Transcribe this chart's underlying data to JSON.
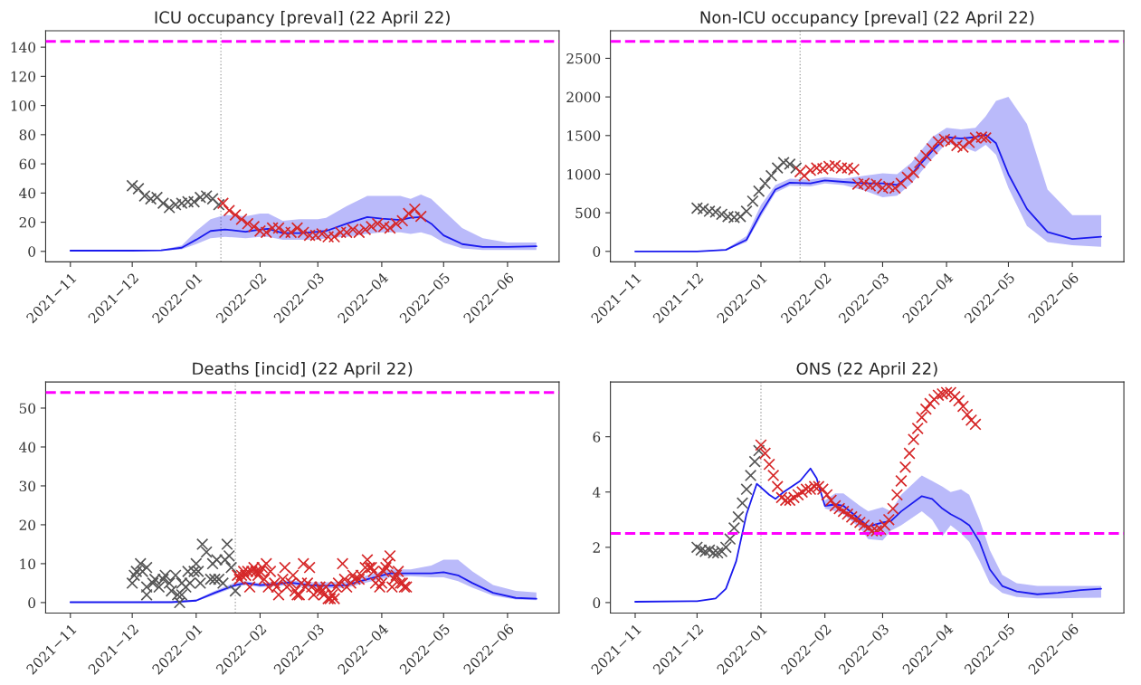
{
  "chart_data": [
    {
      "type": "line",
      "title": "ICU occupancy [preval] (22 April 22)",
      "xlim": [
        "2021-10-20",
        "2022-06-26"
      ],
      "ylim": [
        -7.2,
        151.2
      ],
      "yticks": [
        0,
        20,
        40,
        60,
        80,
        100,
        120,
        140
      ],
      "xticks": [
        {
          "value": "2021-11-01",
          "label": "2021−11"
        },
        {
          "value": "2021-12-01",
          "label": "2021−12"
        },
        {
          "value": "2022-01-01",
          "label": "2022−01"
        },
        {
          "value": "2022-02-01",
          "label": "2022−02"
        },
        {
          "value": "2022-03-01",
          "label": "2022−03"
        },
        {
          "value": "2022-04-01",
          "label": "2022−04"
        },
        {
          "value": "2022-05-01",
          "label": "2022−05"
        },
        {
          "value": "2022-06-01",
          "label": "2022−06"
        }
      ],
      "ref_lines": [
        {
          "axis": "y",
          "value": 144,
          "color": "#ff00ff",
          "line_style": "dashed"
        },
        {
          "axis": "x",
          "value": "2022-01-13",
          "color": "#aaaaaa",
          "line_style": "dotted"
        }
      ],
      "series": [
        {
          "type": "scatter",
          "marker": "cross",
          "color": "#555555",
          "x": [
            "2021-12-01",
            "2021-12-04",
            "2021-12-07",
            "2021-12-10",
            "2021-12-13",
            "2021-12-16",
            "2021-12-19",
            "2021-12-22",
            "2021-12-25",
            "2021-12-28",
            "2021-12-31",
            "2022-01-03",
            "2022-01-06",
            "2022-01-09",
            "2022-01-12"
          ],
          "values": [
            45,
            43,
            38,
            36,
            37,
            33,
            30,
            32,
            33,
            34,
            34,
            37,
            38,
            36,
            32
          ]
        },
        {
          "type": "scatter",
          "marker": "cross",
          "color": "#d62728",
          "x": [
            "2022-01-14",
            "2022-01-17",
            "2022-01-20",
            "2022-01-23",
            "2022-01-26",
            "2022-01-29",
            "2022-02-01",
            "2022-02-04",
            "2022-02-07",
            "2022-02-10",
            "2022-02-13",
            "2022-02-16",
            "2022-02-19",
            "2022-02-22",
            "2022-02-25",
            "2022-02-28",
            "2022-03-03",
            "2022-03-06",
            "2022-03-09",
            "2022-03-12",
            "2022-03-15",
            "2022-03-18",
            "2022-03-21",
            "2022-03-24",
            "2022-03-27",
            "2022-03-30",
            "2022-04-02",
            "2022-04-05",
            "2022-04-08",
            "2022-04-11",
            "2022-04-14",
            "2022-04-17",
            "2022-04-20"
          ],
          "values": [
            33,
            28,
            25,
            22,
            19,
            17,
            14,
            13,
            16,
            16,
            13,
            13,
            16,
            13,
            11,
            11,
            12,
            10,
            10,
            13,
            13,
            15,
            13,
            15,
            17,
            19,
            17,
            16,
            19,
            21,
            26,
            29,
            24
          ]
        },
        {
          "type": "line",
          "marker": "none",
          "color": "#1a1aee",
          "x": [
            "2021-11-01",
            "2021-11-15",
            "2021-12-01",
            "2021-12-15",
            "2021-12-25",
            "2022-01-01",
            "2022-01-08",
            "2022-01-15",
            "2022-01-25",
            "2022-02-01",
            "2022-02-05",
            "2022-02-12",
            "2022-02-20",
            "2022-03-01",
            "2022-03-05",
            "2022-03-15",
            "2022-03-25",
            "2022-04-01",
            "2022-04-10",
            "2022-04-15",
            "2022-04-20",
            "2022-04-25",
            "2022-05-01",
            "2022-05-10",
            "2022-05-20",
            "2022-06-01",
            "2022-06-15"
          ],
          "values": [
            0.5,
            0.5,
            0.5,
            0.7,
            2.5,
            8,
            14,
            15,
            13.5,
            15,
            15.5,
            12.5,
            12.5,
            13.5,
            14,
            19,
            23.5,
            22.5,
            21.5,
            23,
            23.5,
            19,
            11,
            5,
            3,
            3,
            3.5
          ],
          "lower": [
            0,
            0,
            0,
            0.3,
            1.5,
            5,
            9,
            10,
            9,
            10,
            10,
            8,
            8,
            8,
            9,
            10,
            12,
            13,
            13,
            12,
            13,
            11,
            6,
            2,
            1,
            1,
            1
          ],
          "upper": [
            0.5,
            0.5,
            0.5,
            1,
            4,
            14,
            22,
            25,
            24,
            26,
            26,
            21,
            22,
            22,
            23,
            31,
            38,
            38,
            38,
            36,
            39,
            36,
            28,
            16,
            9,
            6,
            6
          ]
        }
      ]
    },
    {
      "type": "line",
      "title": "Non-ICU occupancy [preval] (22 April 22)",
      "xlim": [
        "2021-10-20",
        "2022-06-26"
      ],
      "ylim": [
        -136,
        2856
      ],
      "yticks": [
        0,
        500,
        1000,
        1500,
        2000,
        2500
      ],
      "xticks": [
        {
          "value": "2021-11-01",
          "label": "2021−11"
        },
        {
          "value": "2021-12-01",
          "label": "2021−12"
        },
        {
          "value": "2022-01-01",
          "label": "2022−01"
        },
        {
          "value": "2022-02-01",
          "label": "2022−02"
        },
        {
          "value": "2022-03-01",
          "label": "2022−03"
        },
        {
          "value": "2022-04-01",
          "label": "2022−04"
        },
        {
          "value": "2022-05-01",
          "label": "2022−05"
        },
        {
          "value": "2022-06-01",
          "label": "2022−06"
        }
      ],
      "ref_lines": [
        {
          "axis": "y",
          "value": 2720,
          "color": "#ff00ff",
          "line_style": "dashed"
        },
        {
          "axis": "x",
          "value": "2022-01-20",
          "color": "#aaaaaa",
          "line_style": "dotted"
        }
      ],
      "series": [
        {
          "type": "scatter",
          "marker": "cross",
          "color": "#555555",
          "x": [
            "2021-12-01",
            "2021-12-04",
            "2021-12-07",
            "2021-12-10",
            "2021-12-13",
            "2021-12-16",
            "2021-12-19",
            "2021-12-22",
            "2021-12-25",
            "2021-12-28",
            "2021-12-31",
            "2022-01-03",
            "2022-01-06",
            "2022-01-09",
            "2022-01-12",
            "2022-01-15",
            "2022-01-18"
          ],
          "values": [
            560,
            550,
            520,
            510,
            480,
            450,
            440,
            450,
            520,
            650,
            780,
            880,
            980,
            1080,
            1150,
            1130,
            1080
          ]
        },
        {
          "type": "scatter",
          "marker": "cross",
          "color": "#d62728",
          "x": [
            "2022-01-20",
            "2022-01-22",
            "2022-01-25",
            "2022-01-28",
            "2022-01-31",
            "2022-02-03",
            "2022-02-06",
            "2022-02-09",
            "2022-02-12",
            "2022-02-15",
            "2022-02-17",
            "2022-02-20",
            "2022-02-23",
            "2022-02-26",
            "2022-03-01",
            "2022-03-04",
            "2022-03-07",
            "2022-03-10",
            "2022-03-13",
            "2022-03-16",
            "2022-03-19",
            "2022-03-22",
            "2022-03-25",
            "2022-03-28",
            "2022-03-31",
            "2022-04-03",
            "2022-04-06",
            "2022-04-09",
            "2022-04-12",
            "2022-04-15",
            "2022-04-18",
            "2022-04-20"
          ],
          "values": [
            1030,
            980,
            1050,
            1080,
            1070,
            1100,
            1110,
            1080,
            1080,
            1060,
            870,
            880,
            850,
            870,
            820,
            840,
            820,
            880,
            960,
            1020,
            1150,
            1240,
            1330,
            1420,
            1450,
            1430,
            1370,
            1350,
            1410,
            1470,
            1480,
            1470
          ]
        },
        {
          "type": "line",
          "marker": "none",
          "color": "#1a1aee",
          "x": [
            "2021-11-01",
            "2021-12-01",
            "2021-12-15",
            "2021-12-25",
            "2022-01-01",
            "2022-01-08",
            "2022-01-15",
            "2022-01-25",
            "2022-02-01",
            "2022-02-10",
            "2022-02-20",
            "2022-03-01",
            "2022-03-08",
            "2022-03-15",
            "2022-03-25",
            "2022-04-01",
            "2022-04-08",
            "2022-04-15",
            "2022-04-20",
            "2022-04-25",
            "2022-05-01",
            "2022-05-10",
            "2022-05-20",
            "2022-06-01",
            "2022-06-15"
          ],
          "values": [
            0,
            0,
            20,
            150,
            500,
            800,
            890,
            880,
            920,
            900,
            880,
            880,
            860,
            1000,
            1300,
            1480,
            1460,
            1480,
            1510,
            1400,
            1000,
            550,
            250,
            160,
            190
          ],
          "lower": [
            0,
            0,
            15,
            120,
            450,
            760,
            850,
            840,
            880,
            860,
            790,
            700,
            720,
            880,
            1200,
            1400,
            1360,
            1290,
            1380,
            1250,
            820,
            330,
            120,
            80,
            60
          ],
          "upper": [
            0,
            0,
            30,
            200,
            600,
            860,
            940,
            930,
            960,
            940,
            980,
            1010,
            1000,
            1150,
            1480,
            1600,
            1580,
            1600,
            1750,
            1950,
            2000,
            1650,
            800,
            470,
            470
          ]
        }
      ]
    },
    {
      "type": "line",
      "title": "Deaths [incid] (22 April 22)",
      "xlim": [
        "2021-10-20",
        "2022-06-26"
      ],
      "ylim": [
        -2.7,
        56.7
      ],
      "yticks": [
        0,
        10,
        20,
        30,
        40,
        50
      ],
      "xticks": [
        {
          "value": "2021-11-01",
          "label": "2021−11"
        },
        {
          "value": "2021-12-01",
          "label": "2021−12"
        },
        {
          "value": "2022-01-01",
          "label": "2022−01"
        },
        {
          "value": "2022-02-01",
          "label": "2022−02"
        },
        {
          "value": "2022-03-01",
          "label": "2022−03"
        },
        {
          "value": "2022-04-01",
          "label": "2022−04"
        },
        {
          "value": "2022-05-01",
          "label": "2022−05"
        },
        {
          "value": "2022-06-01",
          "label": "2022−06"
        }
      ],
      "ref_lines": [
        {
          "axis": "y",
          "value": 54,
          "color": "#ff00ff",
          "line_style": "dashed"
        },
        {
          "axis": "x",
          "value": "2022-01-20",
          "color": "#aaaaaa",
          "line_style": "dotted"
        }
      ],
      "series": [
        {
          "type": "scatter",
          "marker": "cross",
          "color": "#555555",
          "x": [
            "2021-12-01",
            "2021-12-02",
            "2021-12-03",
            "2021-12-05",
            "2021-12-06",
            "2021-12-08",
            "2021-12-08",
            "2021-12-08",
            "2021-12-11",
            "2021-12-12",
            "2021-12-14",
            "2021-12-16",
            "2021-12-17",
            "2021-12-19",
            "2021-12-20",
            "2021-12-22",
            "2021-12-23",
            "2021-12-24",
            "2021-12-25",
            "2021-12-25",
            "2021-12-27",
            "2021-12-28",
            "2021-12-29",
            "2021-12-31",
            "2022-01-01",
            "2022-01-02",
            "2022-01-03",
            "2022-01-04",
            "2022-01-06",
            "2022-01-08",
            "2022-01-09",
            "2022-01-10",
            "2022-01-11",
            "2022-01-12",
            "2022-01-14",
            "2022-01-15",
            "2022-01-16",
            "2022-01-17",
            "2022-01-18",
            "2022-01-20"
          ],
          "values": [
            5,
            7,
            8,
            10,
            8,
            9,
            4,
            2,
            5,
            6,
            4,
            6,
            7,
            5,
            3,
            7,
            2,
            0,
            2,
            5,
            4,
            8,
            5,
            8,
            10,
            8,
            5,
            15,
            13,
            6,
            10,
            6,
            11,
            6,
            5,
            11,
            15,
            12,
            9,
            3
          ]
        },
        {
          "type": "scatter",
          "marker": "cross",
          "color": "#d62728",
          "x": [
            "2022-01-21",
            "2022-01-22",
            "2022-01-23",
            "2022-01-24",
            "2022-01-25",
            "2022-01-26",
            "2022-01-27",
            "2022-01-28",
            "2022-01-29",
            "2022-01-30",
            "2022-01-31",
            "2022-02-01",
            "2022-02-02",
            "2022-02-03",
            "2022-02-04",
            "2022-02-05",
            "2022-02-06",
            "2022-02-08",
            "2022-02-09",
            "2022-02-10",
            "2022-02-12",
            "2022-02-13",
            "2022-02-14",
            "2022-02-16",
            "2022-02-17",
            "2022-02-18",
            "2022-02-19",
            "2022-02-20",
            "2022-02-21",
            "2022-02-22",
            "2022-02-23",
            "2022-02-24",
            "2022-02-25",
            "2022-02-26",
            "2022-02-27",
            "2022-03-01",
            "2022-03-02",
            "2022-03-03",
            "2022-03-04",
            "2022-03-05",
            "2022-03-06",
            "2022-03-07",
            "2022-03-08",
            "2022-03-09",
            "2022-03-10",
            "2022-03-11",
            "2022-03-13",
            "2022-03-14",
            "2022-03-15",
            "2022-03-17",
            "2022-03-18",
            "2022-03-19",
            "2022-03-21",
            "2022-03-22",
            "2022-03-24",
            "2022-03-25",
            "2022-03-26",
            "2022-03-27",
            "2022-03-28",
            "2022-03-29",
            "2022-03-30",
            "2022-03-31",
            "2022-04-01",
            "2022-04-02",
            "2022-04-03",
            "2022-04-04",
            "2022-04-05",
            "2022-04-06",
            "2022-04-07",
            "2022-04-08",
            "2022-04-09",
            "2022-04-10",
            "2022-04-11",
            "2022-04-12",
            "2022-04-13"
          ],
          "values": [
            7,
            6,
            7,
            8,
            7,
            8,
            4,
            8,
            9,
            8,
            7,
            8,
            9,
            6,
            10,
            4,
            8,
            5,
            4,
            2,
            6,
            9,
            4,
            5,
            7,
            3,
            2,
            2,
            5,
            10,
            4,
            5,
            9,
            4,
            2,
            3,
            4,
            3,
            2,
            4,
            1,
            1,
            2,
            1,
            4,
            5,
            10,
            6,
            4,
            5,
            7,
            6,
            6,
            7,
            9,
            11,
            9,
            9,
            8,
            5,
            7,
            4,
            5,
            8,
            9,
            10,
            12,
            4,
            6,
            7,
            8,
            5,
            5,
            4,
            4
          ]
        },
        {
          "type": "line",
          "marker": "none",
          "color": "#1a1aee",
          "x": [
            "2021-11-01",
            "2021-12-01",
            "2021-12-20",
            "2022-01-01",
            "2022-01-10",
            "2022-01-20",
            "2022-01-25",
            "2022-02-01",
            "2022-02-10",
            "2022-02-15",
            "2022-02-25",
            "2022-03-05",
            "2022-03-15",
            "2022-03-25",
            "2022-04-05",
            "2022-04-15",
            "2022-04-25",
            "2022-05-01",
            "2022-05-08",
            "2022-05-15",
            "2022-05-25",
            "2022-06-05",
            "2022-06-15"
          ],
          "values": [
            0.1,
            0.1,
            0.1,
            0.5,
            2.5,
            4.5,
            5,
            4.5,
            4.8,
            5.2,
            4.5,
            4.3,
            4.5,
            6,
            7.5,
            7.5,
            7.5,
            7.8,
            7,
            5,
            2.5,
            1.2,
            1
          ],
          "lower": [
            0,
            0,
            0,
            0.3,
            2,
            4,
            4.5,
            4,
            4.2,
            4.5,
            3.8,
            3.6,
            3.8,
            5.2,
            6.5,
            6.8,
            6.5,
            6.5,
            5.5,
            3.8,
            1.8,
            0.8,
            0.6
          ],
          "upper": [
            0.2,
            0.2,
            0.3,
            0.8,
            3,
            5.2,
            5.5,
            5,
            5.4,
            5.8,
            5.2,
            5.2,
            5.4,
            7,
            8.5,
            8.5,
            9.5,
            11,
            11,
            8,
            4.5,
            3,
            2.6
          ]
        }
      ]
    },
    {
      "type": "line",
      "title": "ONS (22 April 22)",
      "xlim": [
        "2021-10-20",
        "2022-06-26"
      ],
      "ylim": [
        -0.38,
        7.98
      ],
      "yticks": [
        0,
        2,
        4,
        6
      ],
      "xticks": [
        {
          "value": "2021-11-01",
          "label": "2021−11"
        },
        {
          "value": "2021-12-01",
          "label": "2021−12"
        },
        {
          "value": "2022-01-01",
          "label": "2022−01"
        },
        {
          "value": "2022-02-01",
          "label": "2022−02"
        },
        {
          "value": "2022-03-01",
          "label": "2022−03"
        },
        {
          "value": "2022-04-01",
          "label": "2022−04"
        },
        {
          "value": "2022-05-01",
          "label": "2022−05"
        },
        {
          "value": "2022-06-01",
          "label": "2022−06"
        }
      ],
      "ref_lines": [
        {
          "axis": "y",
          "value": 2.5,
          "color": "#ff00ff",
          "line_style": "dashed"
        },
        {
          "axis": "x",
          "value": "2022-01-01",
          "color": "#aaaaaa",
          "line_style": "dotted"
        }
      ],
      "series": [
        {
          "type": "scatter",
          "marker": "cross",
          "color": "#555555",
          "x": [
            "2021-12-01",
            "2021-12-03",
            "2021-12-05",
            "2021-12-07",
            "2021-12-09",
            "2021-12-11",
            "2021-12-13",
            "2021-12-15",
            "2021-12-17",
            "2021-12-19",
            "2021-12-21",
            "2021-12-23",
            "2021-12-25",
            "2021-12-27",
            "2021-12-29",
            "2021-12-31"
          ],
          "values": [
            2.0,
            1.9,
            1.85,
            1.9,
            1.8,
            1.8,
            1.85,
            2.0,
            2.3,
            2.7,
            3.1,
            3.6,
            4.1,
            4.6,
            5.1,
            5.5
          ]
        },
        {
          "type": "scatter",
          "marker": "cross",
          "color": "#d62728",
          "x": [
            "2022-01-01",
            "2022-01-03",
            "2022-01-05",
            "2022-01-07",
            "2022-01-09",
            "2022-01-11",
            "2022-01-13",
            "2022-01-15",
            "2022-01-17",
            "2022-01-19",
            "2022-01-21",
            "2022-01-23",
            "2022-01-25",
            "2022-01-27",
            "2022-01-29",
            "2022-01-31",
            "2022-02-02",
            "2022-02-04",
            "2022-02-06",
            "2022-02-08",
            "2022-02-10",
            "2022-02-12",
            "2022-02-14",
            "2022-02-16",
            "2022-02-18",
            "2022-02-20",
            "2022-02-22",
            "2022-02-24",
            "2022-02-26",
            "2022-02-28",
            "2022-03-02",
            "2022-03-04",
            "2022-03-06",
            "2022-03-08",
            "2022-03-10",
            "2022-03-12",
            "2022-03-14",
            "2022-03-16",
            "2022-03-18",
            "2022-03-20",
            "2022-03-22",
            "2022-03-24",
            "2022-03-26",
            "2022-03-28",
            "2022-03-30",
            "2022-04-01",
            "2022-04-03",
            "2022-04-05",
            "2022-04-07",
            "2022-04-09",
            "2022-04-11",
            "2022-04-13",
            "2022-04-15"
          ],
          "values": [
            5.7,
            5.4,
            5.0,
            4.6,
            4.2,
            3.8,
            3.7,
            3.7,
            3.8,
            3.9,
            4.0,
            4.1,
            4.1,
            4.2,
            4.2,
            4.1,
            3.9,
            3.7,
            3.5,
            3.4,
            3.3,
            3.2,
            3.1,
            3.0,
            2.9,
            2.8,
            2.7,
            2.6,
            2.6,
            2.65,
            2.8,
            3.0,
            3.4,
            3.9,
            4.4,
            4.9,
            5.4,
            5.9,
            6.3,
            6.7,
            7.0,
            7.2,
            7.35,
            7.5,
            7.55,
            7.6,
            7.6,
            7.45,
            7.3,
            7.1,
            6.8,
            6.6,
            6.45
          ]
        },
        {
          "type": "line",
          "marker": "none",
          "color": "#1a1aee",
          "x": [
            "2021-11-01",
            "2021-12-01",
            "2021-12-10",
            "2021-12-15",
            "2021-12-20",
            "2021-12-25",
            "2021-12-30",
            "2022-01-05",
            "2022-01-08",
            "2022-01-12",
            "2022-01-20",
            "2022-01-25",
            "2022-01-28",
            "2022-02-01",
            "2022-02-06",
            "2022-02-10",
            "2022-02-18",
            "2022-02-22",
            "2022-03-01",
            "2022-03-05",
            "2022-03-10",
            "2022-03-20",
            "2022-03-25",
            "2022-03-30",
            "2022-04-03",
            "2022-04-08",
            "2022-04-12",
            "2022-04-17",
            "2022-04-22",
            "2022-04-28",
            "2022-05-05",
            "2022-05-15",
            "2022-05-25",
            "2022-06-05",
            "2022-06-15"
          ],
          "values": [
            0.03,
            0.05,
            0.15,
            0.5,
            1.5,
            3.2,
            4.3,
            3.9,
            3.75,
            4.0,
            4.4,
            4.85,
            4.5,
            3.5,
            3.55,
            3.5,
            3.0,
            2.75,
            2.9,
            2.95,
            3.3,
            3.85,
            3.75,
            3.4,
            3.2,
            3.0,
            2.8,
            2.2,
            1.2,
            0.6,
            0.4,
            0.3,
            0.35,
            0.45,
            0.5
          ],
          "lower": [
            null,
            null,
            null,
            null,
            null,
            null,
            null,
            null,
            null,
            null,
            null,
            null,
            null,
            3.4,
            3.3,
            3.2,
            2.7,
            2.3,
            2.25,
            2.6,
            2.8,
            3.3,
            3.0,
            2.4,
            2.8,
            2.5,
            2.2,
            1.5,
            0.7,
            0.35,
            0.2,
            0.15,
            0.15,
            0.17,
            0.18
          ],
          "upper": [
            null,
            null,
            null,
            null,
            null,
            null,
            null,
            null,
            null,
            null,
            null,
            null,
            null,
            3.7,
            3.95,
            3.95,
            3.5,
            3.3,
            3.45,
            3.3,
            3.9,
            4.6,
            4.4,
            4.2,
            4.0,
            4.1,
            3.9,
            3.0,
            1.9,
            1.0,
            0.7,
            0.6,
            0.6,
            0.6,
            0.6
          ]
        }
      ]
    }
  ]
}
